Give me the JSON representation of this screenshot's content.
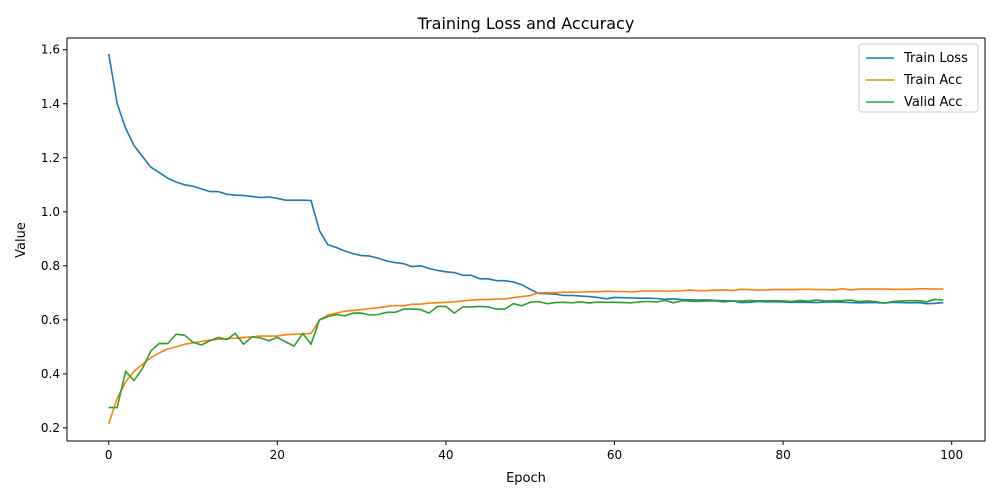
{
  "chart_data": {
    "type": "line",
    "title": "Training Loss and Accuracy",
    "xlabel": "Epoch",
    "ylabel": "Value",
    "xlim": [
      -4.95,
      103.95
    ],
    "ylim": [
      0.1515,
      1.6435
    ],
    "xticks": [
      0,
      20,
      40,
      60,
      80,
      100
    ],
    "yticks": [
      0.2,
      0.4,
      0.6,
      0.8,
      1.0,
      1.2,
      1.4,
      1.6
    ],
    "ytick_labels": [
      "0.2",
      "0.4",
      "0.6",
      "0.8",
      "1.0",
      "1.2",
      "1.4",
      "1.6"
    ],
    "grid": false,
    "legend_position": "top-right",
    "series": [
      {
        "name": "Train Loss",
        "color": "#1f77b4",
        "values": [
          1.585,
          1.4,
          1.31,
          1.245,
          1.205,
          1.165,
          1.145,
          1.125,
          1.11,
          1.1,
          1.095,
          1.085,
          1.075,
          1.075,
          1.065,
          1.062,
          1.06,
          1.057,
          1.053,
          1.055,
          1.05,
          1.043,
          1.043,
          1.043,
          1.042,
          0.93,
          0.878,
          0.868,
          0.855,
          0.845,
          0.838,
          0.836,
          0.828,
          0.818,
          0.812,
          0.808,
          0.797,
          0.8,
          0.79,
          0.783,
          0.778,
          0.775,
          0.765,
          0.765,
          0.752,
          0.752,
          0.745,
          0.745,
          0.74,
          0.73,
          0.713,
          0.698,
          0.697,
          0.695,
          0.69,
          0.69,
          0.688,
          0.686,
          0.683,
          0.678,
          0.683,
          0.682,
          0.681,
          0.68,
          0.68,
          0.679,
          0.676,
          0.678,
          0.675,
          0.674,
          0.673,
          0.674,
          0.672,
          0.671,
          0.67,
          0.664,
          0.665,
          0.668,
          0.667,
          0.667,
          0.666,
          0.665,
          0.665,
          0.665,
          0.664,
          0.666,
          0.667,
          0.665,
          0.664,
          0.663,
          0.664,
          0.664,
          0.662,
          0.665,
          0.664,
          0.663,
          0.664,
          0.66,
          0.661,
          0.664
        ]
      },
      {
        "name": "Train Acc",
        "color": "#ff7f0e",
        "values": [
          0.215,
          0.31,
          0.37,
          0.41,
          0.435,
          0.46,
          0.478,
          0.492,
          0.5,
          0.51,
          0.515,
          0.52,
          0.525,
          0.528,
          0.53,
          0.532,
          0.535,
          0.537,
          0.54,
          0.54,
          0.54,
          0.545,
          0.547,
          0.548,
          0.55,
          0.6,
          0.618,
          0.625,
          0.632,
          0.635,
          0.638,
          0.642,
          0.645,
          0.65,
          0.653,
          0.652,
          0.658,
          0.658,
          0.662,
          0.663,
          0.665,
          0.667,
          0.67,
          0.673,
          0.675,
          0.675,
          0.677,
          0.678,
          0.682,
          0.686,
          0.69,
          0.7,
          0.7,
          0.7,
          0.703,
          0.702,
          0.703,
          0.704,
          0.704,
          0.706,
          0.705,
          0.705,
          0.703,
          0.706,
          0.707,
          0.707,
          0.706,
          0.707,
          0.708,
          0.71,
          0.708,
          0.708,
          0.71,
          0.711,
          0.709,
          0.713,
          0.712,
          0.71,
          0.711,
          0.712,
          0.712,
          0.712,
          0.713,
          0.713,
          0.712,
          0.712,
          0.71,
          0.715,
          0.711,
          0.714,
          0.714,
          0.714,
          0.714,
          0.713,
          0.713,
          0.713,
          0.715,
          0.715,
          0.714,
          0.714
        ]
      },
      {
        "name": "Valid Acc",
        "color": "#2ca02c",
        "values": [
          0.275,
          0.275,
          0.41,
          0.375,
          0.42,
          0.485,
          0.513,
          0.512,
          0.547,
          0.543,
          0.517,
          0.507,
          0.523,
          0.535,
          0.527,
          0.55,
          0.51,
          0.537,
          0.533,
          0.523,
          0.535,
          0.518,
          0.503,
          0.55,
          0.51,
          0.6,
          0.612,
          0.62,
          0.615,
          0.625,
          0.625,
          0.618,
          0.62,
          0.628,
          0.628,
          0.64,
          0.64,
          0.638,
          0.625,
          0.65,
          0.65,
          0.625,
          0.648,
          0.648,
          0.65,
          0.648,
          0.64,
          0.64,
          0.66,
          0.652,
          0.665,
          0.668,
          0.66,
          0.664,
          0.665,
          0.663,
          0.667,
          0.662,
          0.666,
          0.665,
          0.665,
          0.664,
          0.663,
          0.667,
          0.668,
          0.666,
          0.672,
          0.663,
          0.671,
          0.669,
          0.668,
          0.67,
          0.67,
          0.666,
          0.67,
          0.669,
          0.672,
          0.67,
          0.671,
          0.671,
          0.67,
          0.668,
          0.672,
          0.669,
          0.673,
          0.67,
          0.671,
          0.671,
          0.673,
          0.668,
          0.67,
          0.667,
          0.662,
          0.668,
          0.67,
          0.671,
          0.671,
          0.667,
          0.676,
          0.674
        ]
      }
    ]
  }
}
